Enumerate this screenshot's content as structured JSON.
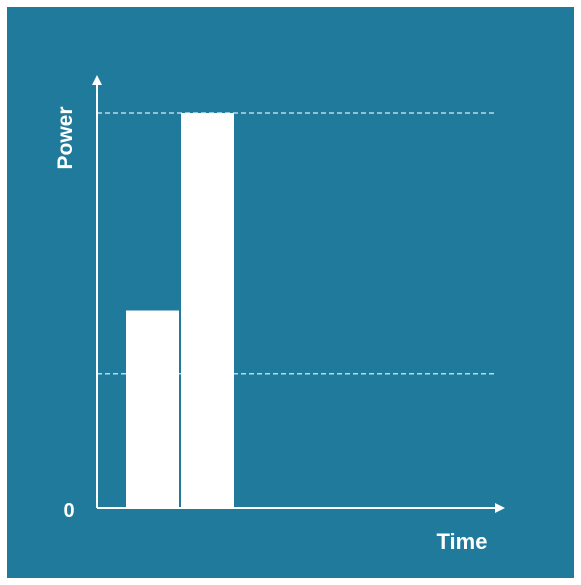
{
  "colors": {
    "background": "#1f7a9c",
    "bar": "#ffffff",
    "axis": "#ffffff",
    "reference_line": "#b9dbe8"
  },
  "chart_data": {
    "type": "bar",
    "xlabel": "Time",
    "ylabel": "Power",
    "y_tick_labels": [
      "0"
    ],
    "categories": [
      "",
      ""
    ],
    "values": [
      50,
      100
    ],
    "ylim": [
      0,
      126
    ],
    "reference_lines": [
      34,
      100
    ],
    "reference_line_style": "dashed",
    "grid": false,
    "legend": "none"
  }
}
